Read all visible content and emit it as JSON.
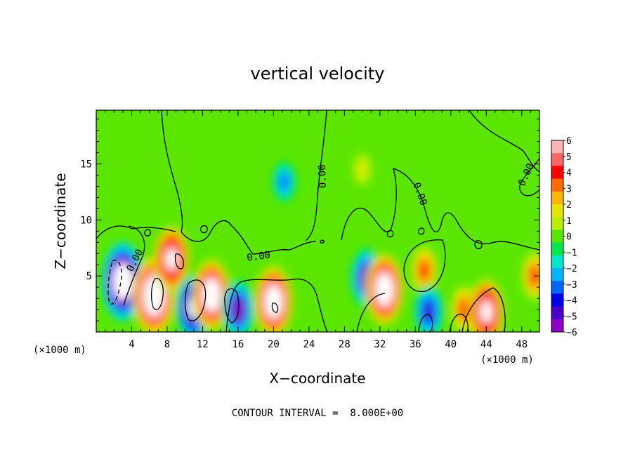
{
  "chart_data": {
    "type": "heatmap",
    "title": "vertical velocity",
    "xlabel": "X−coordinate",
    "ylabel": "Z−coordinate",
    "x_unit_label": "(×1000 m)",
    "x_ticks": [
      4,
      8,
      12,
      16,
      20,
      24,
      28,
      32,
      36,
      40,
      44,
      48
    ],
    "y_ticks": [
      5,
      10,
      15
    ],
    "xlim": [
      0,
      50
    ],
    "ylim": [
      0,
      19.8
    ],
    "colorbar": {
      "ticks": [
        "6",
        "5",
        "4",
        "3",
        "2",
        "1",
        "0",
        "−1",
        "−2",
        "−3",
        "−4",
        "−5",
        "−6"
      ],
      "colors": [
        "#ffb4b4",
        "#ff6464",
        "#ff0000",
        "#ff6a00",
        "#ffb400",
        "#e6e600",
        "#b4f000",
        "#5ae600",
        "#00e650",
        "#00e6c8",
        "#00b4ff",
        "#0064ff",
        "#0000e6",
        "#4600c8",
        "#8c00c8"
      ]
    },
    "contour_label": "0.00",
    "contour_interval_text": "CONTOUR INTERVAL =  8.000E+00",
    "features": [
      {
        "x": 3,
        "z": 4.5,
        "w": -9
      },
      {
        "x": 6.5,
        "z": 3.2,
        "w": 9
      },
      {
        "x": 8.5,
        "z": 6.5,
        "w": 7
      },
      {
        "x": 11,
        "z": 2.2,
        "w": -7
      },
      {
        "x": 13,
        "z": 3.3,
        "w": 8
      },
      {
        "x": 16,
        "z": 2.0,
        "w": -6
      },
      {
        "x": 20,
        "z": 2.7,
        "w": 8
      },
      {
        "x": 21.2,
        "z": 13.4,
        "w": -3
      },
      {
        "x": 30.5,
        "z": 4.8,
        "w": -6
      },
      {
        "x": 32.5,
        "z": 3.8,
        "w": 8
      },
      {
        "x": 37,
        "z": 5.5,
        "w": 4
      },
      {
        "x": 37.5,
        "z": 1.8,
        "w": -5
      },
      {
        "x": 41.5,
        "z": 2.0,
        "w": 4
      },
      {
        "x": 44,
        "z": 2.2,
        "w": -5
      },
      {
        "x": 44,
        "z": 1.8,
        "w": 7
      },
      {
        "x": 49.5,
        "z": 5.0,
        "w": 4
      },
      {
        "x": 30,
        "z": 14.5,
        "w": 1.5
      }
    ]
  }
}
